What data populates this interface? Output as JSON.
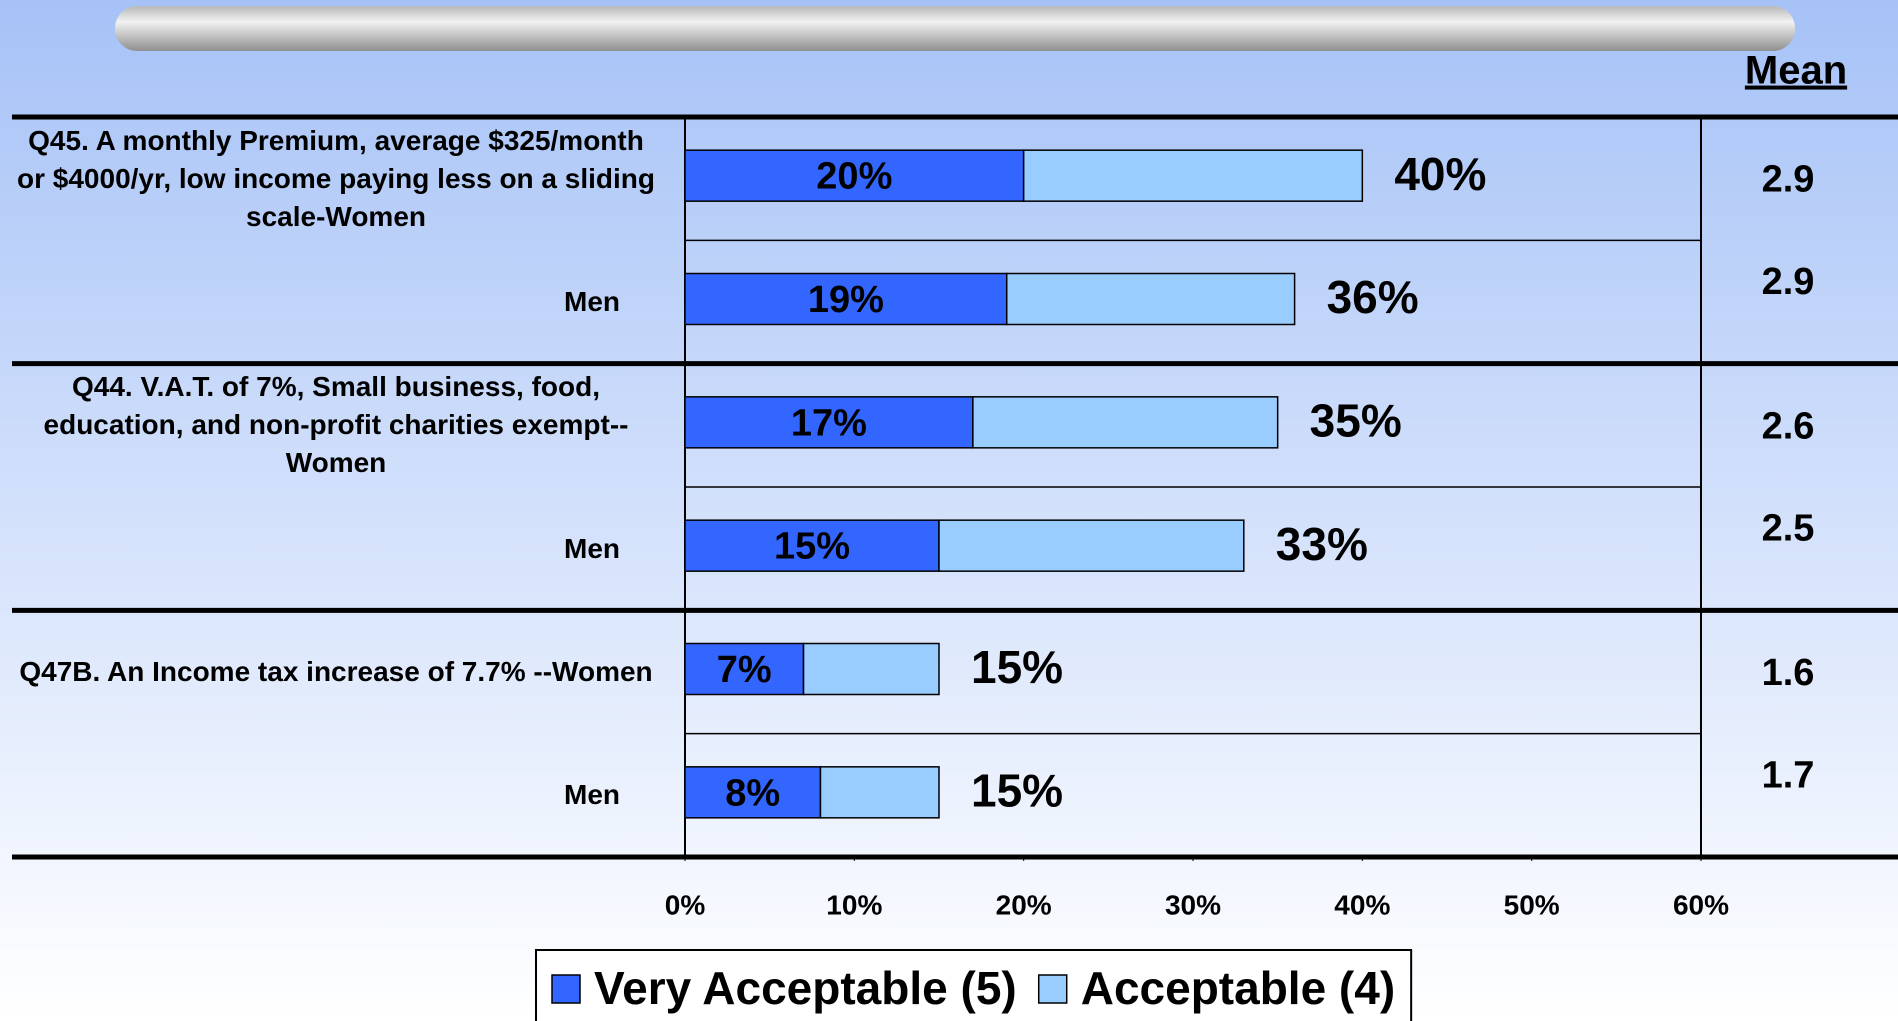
{
  "chart_data": {
    "type": "bar",
    "orientation": "horizontal",
    "stacked": true,
    "categories": [
      "Q45. A monthly Premium, average $325/month or $4000/yr, low income paying less on a sliding scale-Women",
      "Men",
      "Q44. V.A.T. of 7%, Small business, food, education, and non-profit charities exempt--Women",
      "Men",
      "Q47B. An Income tax increase of 7.7% --Women",
      "Men"
    ],
    "series": [
      {
        "name": "Very Acceptable (5)",
        "color": "#3366ff",
        "values": [
          20,
          19,
          17,
          15,
          7,
          8
        ],
        "value_labels": [
          "20%",
          "19%",
          "17%",
          "15%",
          "7%",
          "8%"
        ]
      },
      {
        "name": "Acceptable (4)",
        "color": "#99ccff",
        "values": [
          20,
          17,
          18,
          18,
          8,
          7
        ]
      }
    ],
    "total_labels": [
      "40%",
      "36%",
      "35%",
      "33%",
      "15%",
      "15%"
    ],
    "mean_header": "Mean",
    "means": [
      2.9,
      2.9,
      2.6,
      2.5,
      1.6,
      1.7
    ],
    "xlim": [
      0,
      60
    ],
    "xticks": [
      {
        "value": 0,
        "label": "0%"
      },
      {
        "value": 10,
        "label": "10%"
      },
      {
        "value": 20,
        "label": "20%"
      },
      {
        "value": 30,
        "label": "30%"
      },
      {
        "value": 40,
        "label": "40%"
      },
      {
        "value": 50,
        "label": "50%"
      },
      {
        "value": 60,
        "label": "60%"
      }
    ],
    "legend": "bottom"
  }
}
